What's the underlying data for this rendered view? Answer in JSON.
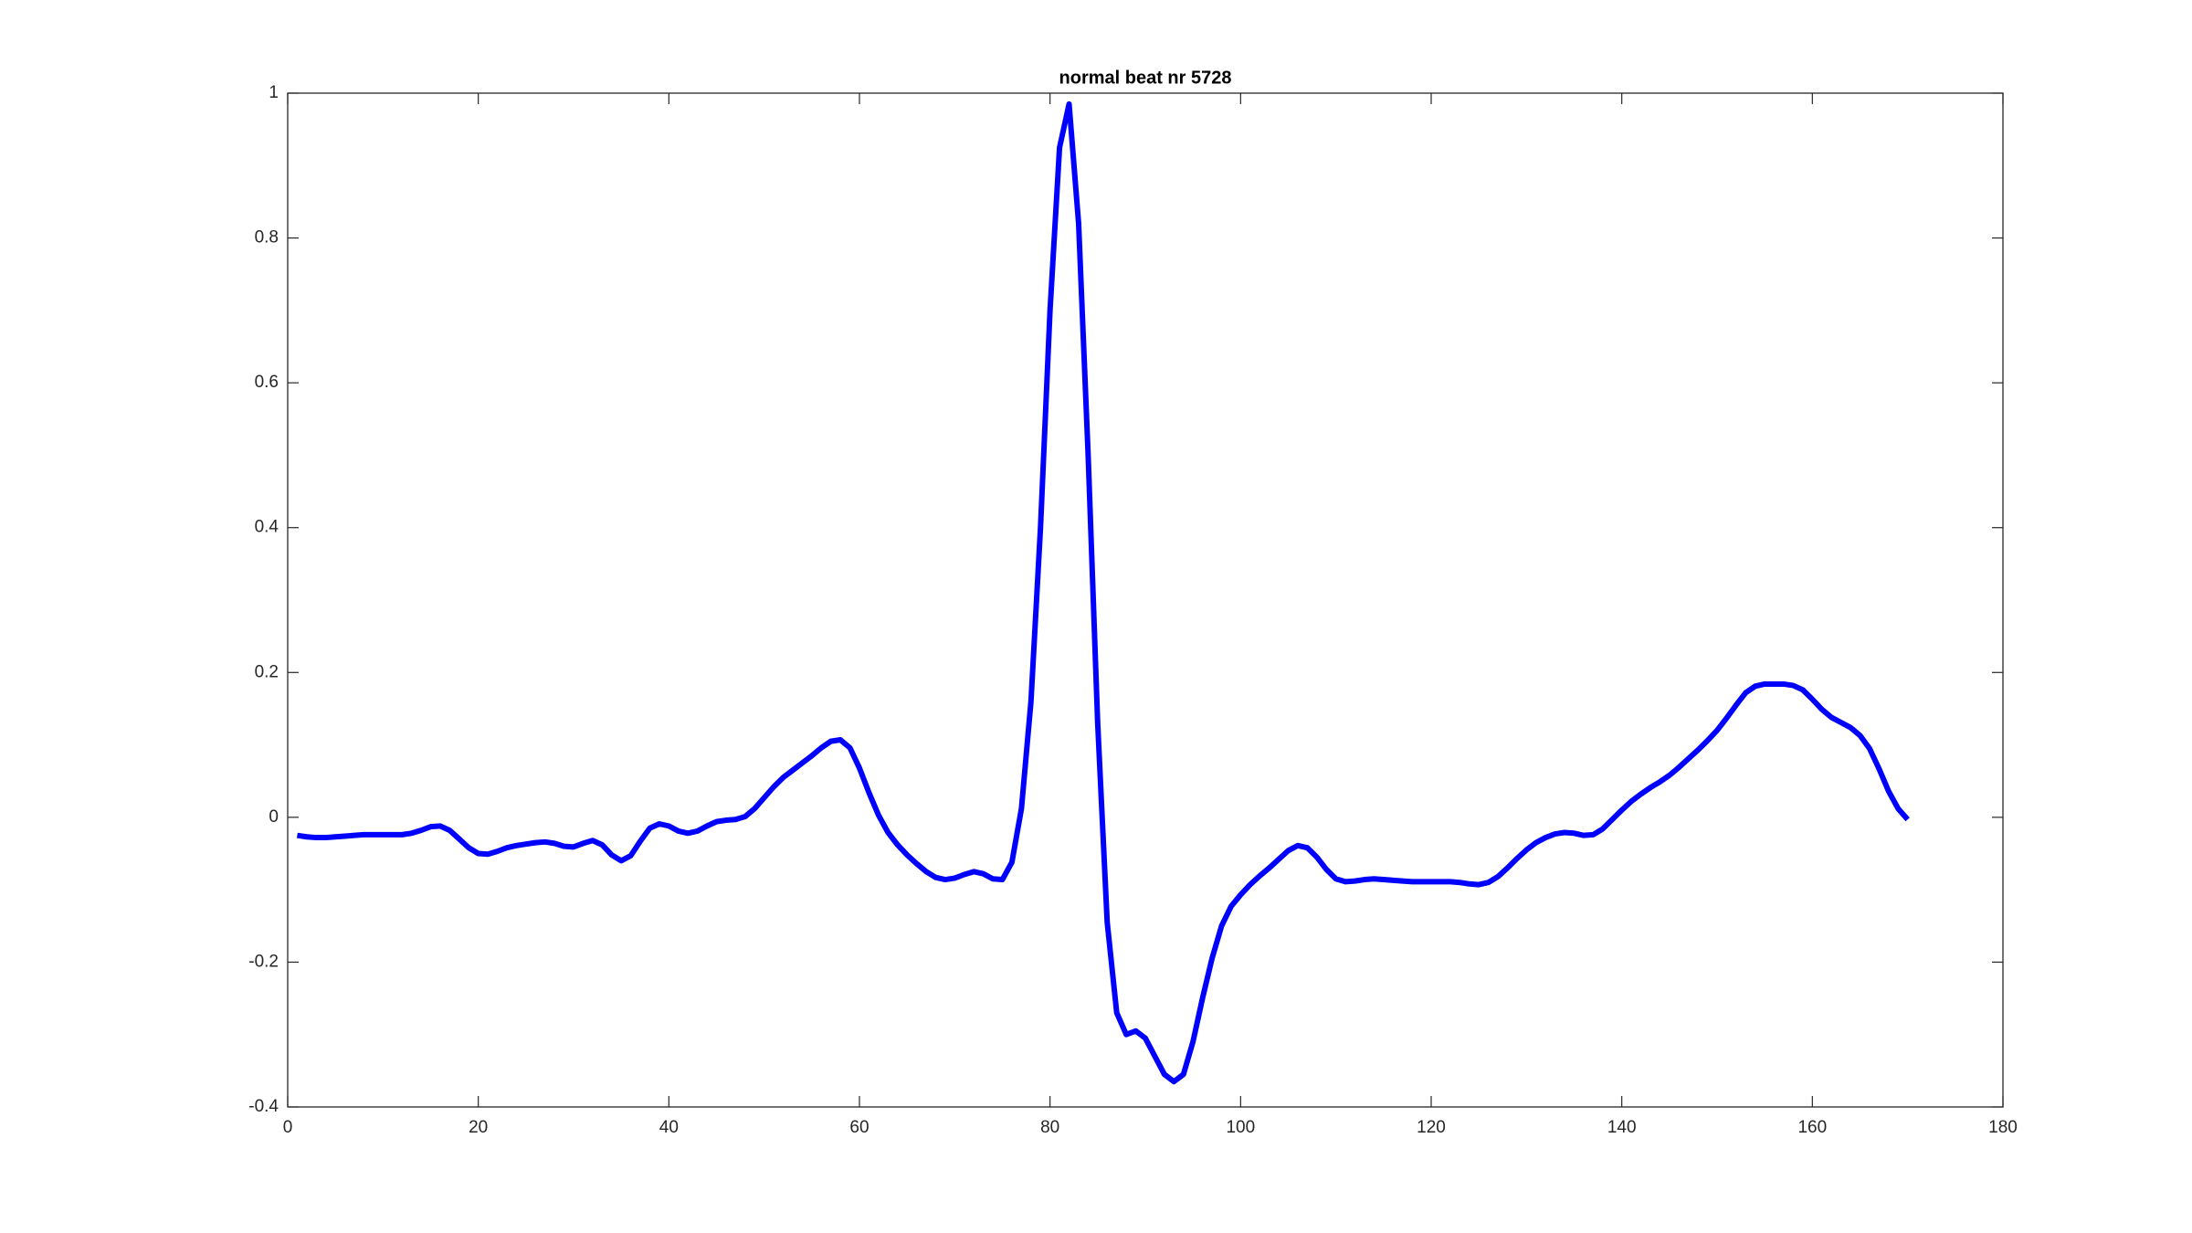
{
  "chart_data": {
    "type": "line",
    "title": "normal beat nr 5728",
    "x": [
      1,
      2,
      3,
      4,
      5,
      6,
      7,
      8,
      9,
      10,
      11,
      12,
      13,
      14,
      15,
      16,
      17,
      18,
      19,
      20,
      21,
      22,
      23,
      24,
      25,
      26,
      27,
      28,
      29,
      30,
      31,
      32,
      33,
      34,
      35,
      36,
      37,
      38,
      39,
      40,
      41,
      42,
      43,
      44,
      45,
      46,
      47,
      48,
      49,
      50,
      51,
      52,
      53,
      54,
      55,
      56,
      57,
      58,
      59,
      60,
      61,
      62,
      63,
      64,
      65,
      66,
      67,
      68,
      69,
      70,
      71,
      72,
      73,
      74,
      75,
      76,
      77,
      78,
      79,
      80,
      81,
      82,
      83,
      84,
      85,
      86,
      87,
      88,
      89,
      90,
      91,
      92,
      93,
      94,
      95,
      96,
      97,
      98,
      99,
      100,
      101,
      102,
      103,
      104,
      105,
      106,
      107,
      108,
      109,
      110,
      111,
      112,
      113,
      114,
      115,
      116,
      117,
      118,
      119,
      120,
      121,
      122,
      123,
      124,
      125,
      126,
      127,
      128,
      129,
      130,
      131,
      132,
      133,
      134,
      135,
      136,
      137,
      138,
      139,
      140,
      141,
      142,
      143,
      144,
      145,
      146,
      147,
      148,
      149,
      150,
      151,
      152,
      153,
      154,
      155,
      156,
      157,
      158,
      159,
      160,
      161,
      162,
      163,
      164,
      165,
      166,
      167,
      168,
      169,
      170
    ],
    "series": [
      {
        "color": "#0000ff",
        "values": [
          -0.025,
          -0.027,
          -0.028,
          -0.028,
          -0.027,
          -0.026,
          -0.025,
          -0.024,
          -0.024,
          -0.024,
          -0.024,
          -0.024,
          -0.022,
          -0.018,
          -0.013,
          -0.012,
          -0.018,
          -0.03,
          -0.042,
          -0.05,
          -0.051,
          -0.047,
          -0.042,
          -0.039,
          -0.037,
          -0.035,
          -0.034,
          -0.036,
          -0.04,
          -0.041,
          -0.036,
          -0.032,
          -0.038,
          -0.052,
          -0.06,
          -0.053,
          -0.033,
          -0.015,
          -0.009,
          -0.012,
          -0.019,
          -0.022,
          -0.019,
          -0.012,
          -0.006,
          -0.004,
          -0.003,
          0.001,
          0.012,
          0.027,
          0.042,
          0.055,
          0.065,
          0.075,
          0.085,
          0.096,
          0.105,
          0.107,
          0.096,
          0.068,
          0.034,
          0.003,
          -0.021,
          -0.038,
          -0.052,
          -0.064,
          -0.075,
          -0.083,
          -0.086,
          -0.084,
          -0.079,
          -0.075,
          -0.078,
          -0.085,
          -0.086,
          -0.062,
          0.012,
          0.16,
          0.4,
          0.7,
          0.925,
          0.985,
          0.82,
          0.5,
          0.13,
          -0.145,
          -0.27,
          -0.3,
          -0.295,
          -0.305,
          -0.33,
          -0.355,
          -0.365,
          -0.355,
          -0.31,
          -0.25,
          -0.195,
          -0.15,
          -0.123,
          -0.107,
          -0.093,
          -0.081,
          -0.07,
          -0.058,
          -0.046,
          -0.039,
          -0.042,
          -0.055,
          -0.072,
          -0.085,
          -0.089,
          -0.088,
          -0.086,
          -0.085,
          -0.086,
          -0.087,
          -0.088,
          -0.089,
          -0.089,
          -0.089,
          -0.089,
          -0.089,
          -0.09,
          -0.092,
          -0.093,
          -0.09,
          -0.082,
          -0.07,
          -0.057,
          -0.045,
          -0.035,
          -0.028,
          -0.023,
          -0.021,
          -0.022,
          -0.025,
          -0.024,
          -0.016,
          -0.003,
          0.01,
          0.022,
          0.032,
          0.041,
          0.049,
          0.058,
          0.069,
          0.081,
          0.093,
          0.106,
          0.12,
          0.137,
          0.155,
          0.172,
          0.181,
          0.184,
          0.184,
          0.184,
          0.182,
          0.176,
          0.163,
          0.149,
          0.138,
          0.131,
          0.124,
          0.113,
          0.095,
          0.067,
          0.036,
          0.012,
          -0.003
        ]
      }
    ],
    "xlim": [
      0,
      180
    ],
    "xticks": [
      0,
      20,
      40,
      60,
      80,
      100,
      120,
      140,
      160,
      180
    ],
    "ylim": [
      -0.4,
      1
    ],
    "yticks": [
      -0.4,
      -0.2,
      0,
      0.2,
      0.4,
      0.6,
      0.8,
      1
    ]
  }
}
